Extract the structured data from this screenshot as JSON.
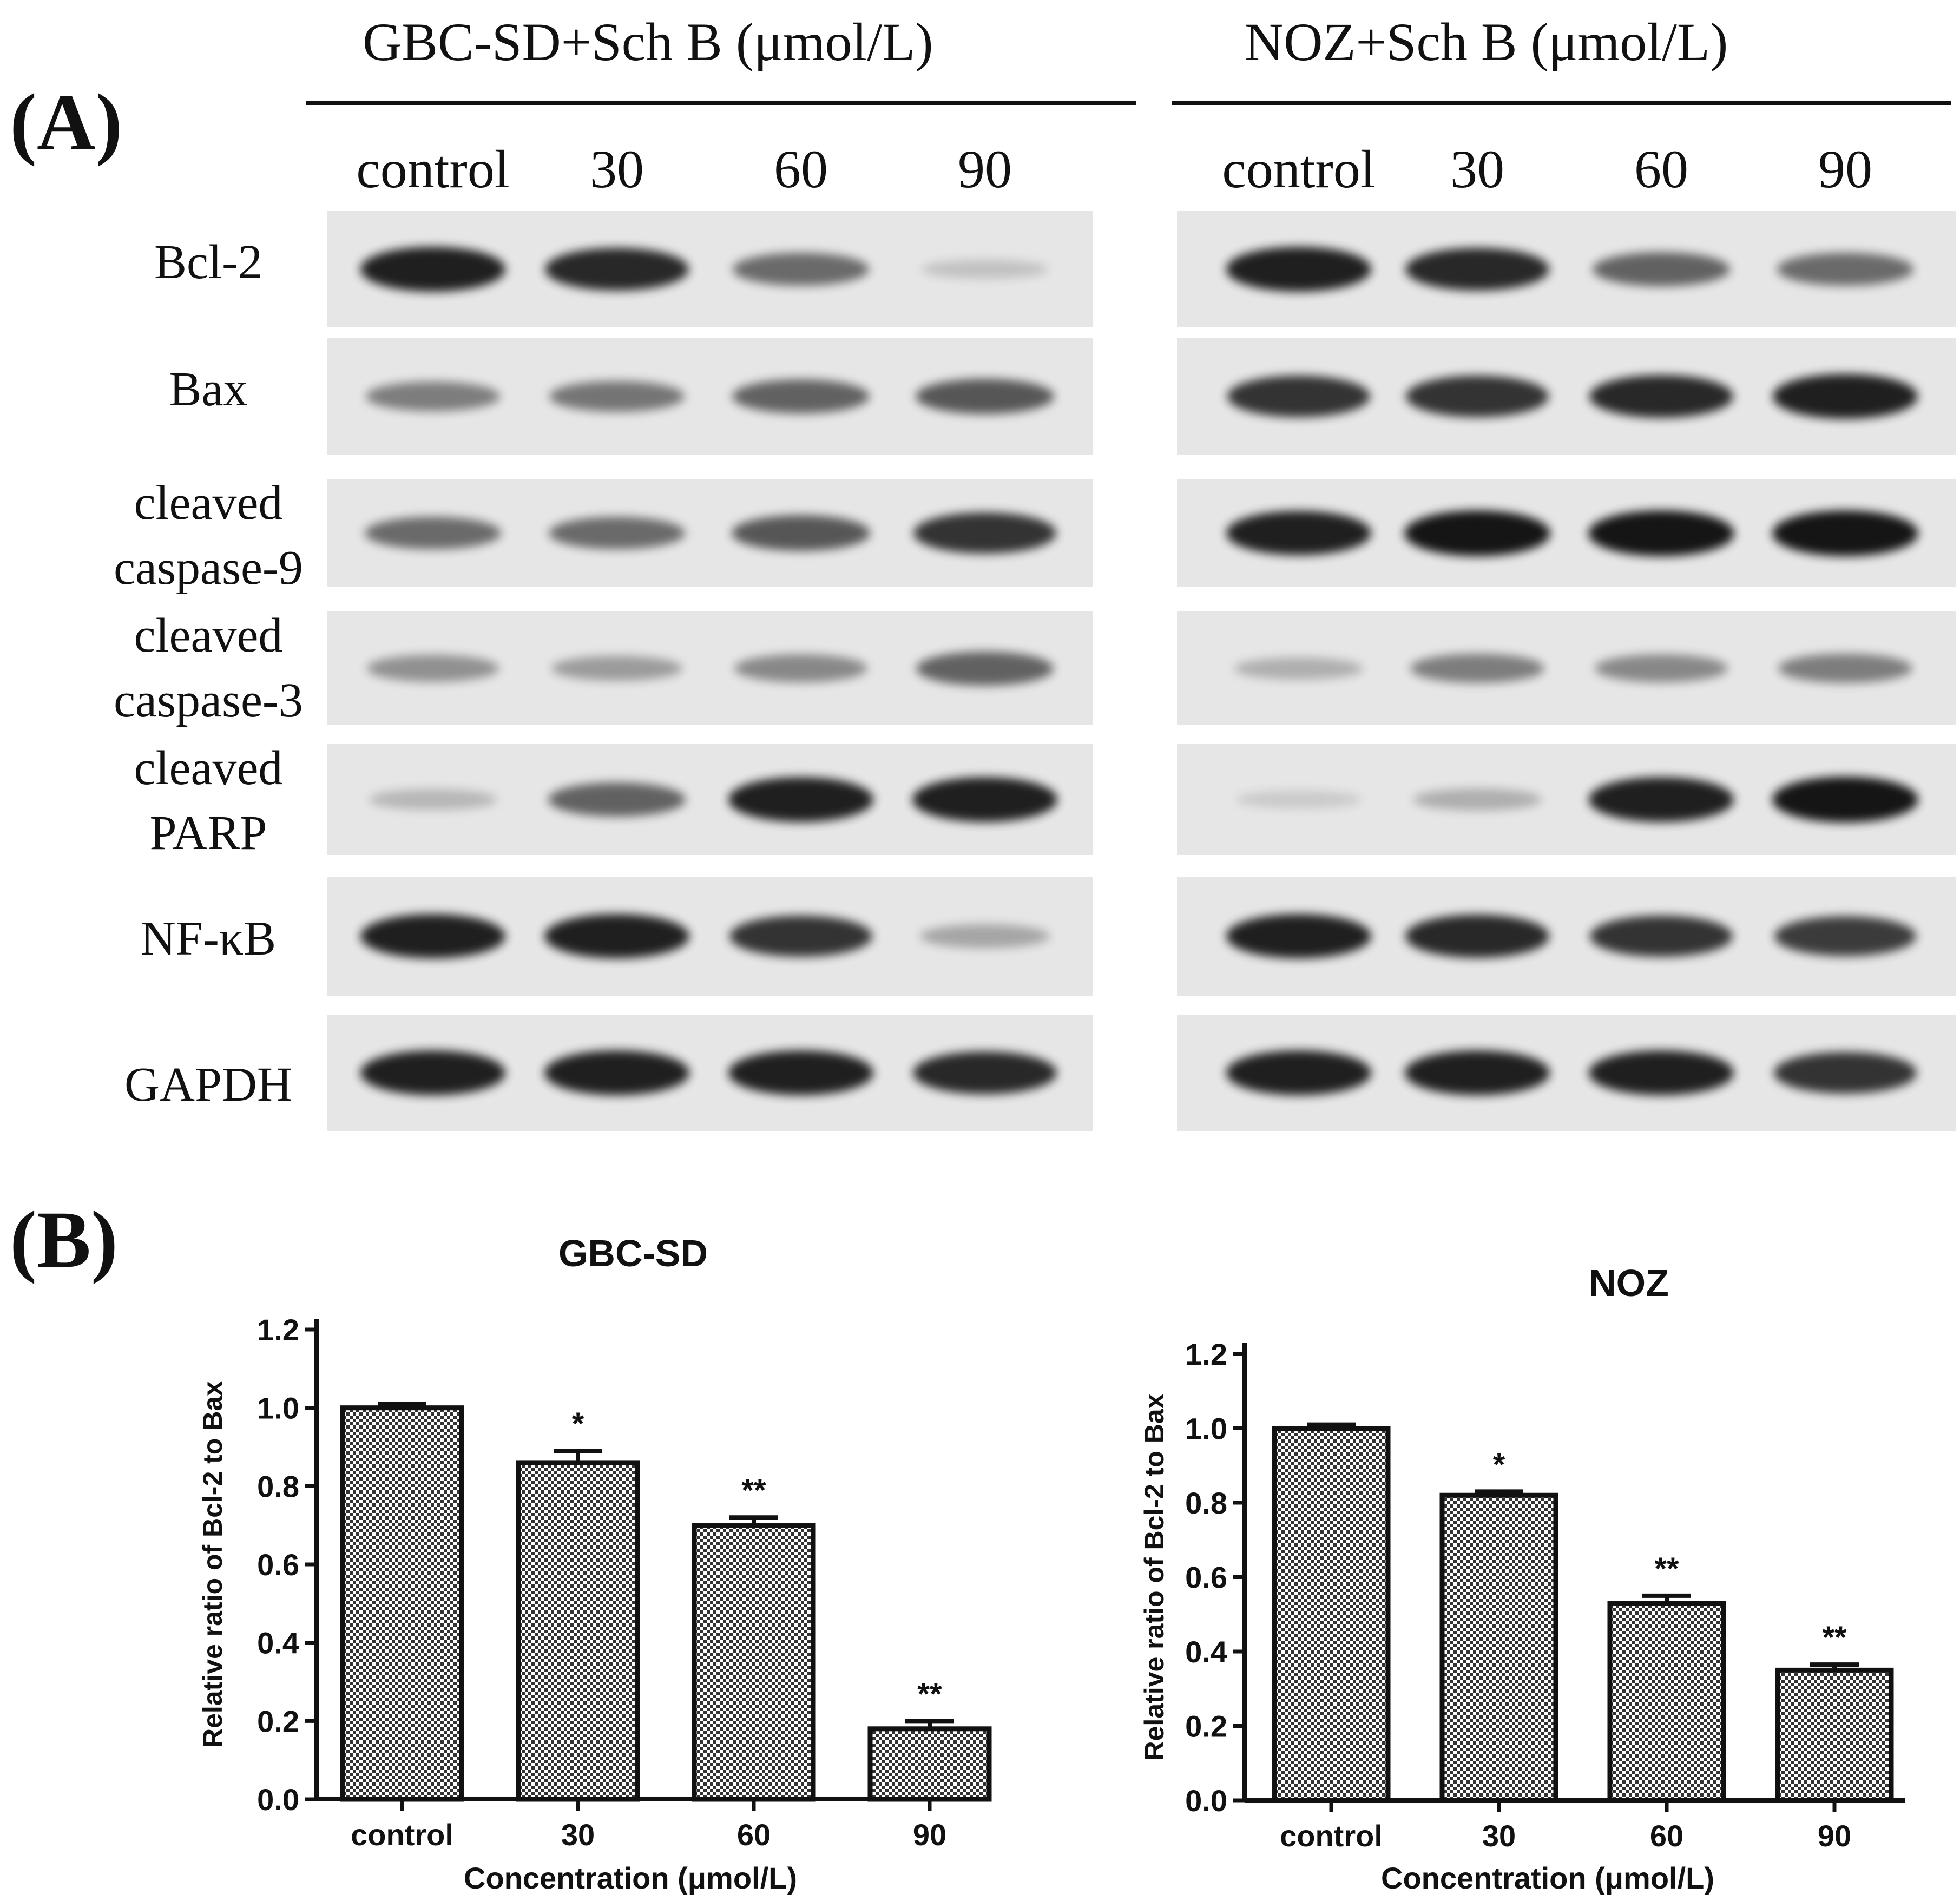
{
  "panel_a": {
    "label": "(A)",
    "groups": [
      {
        "title": "GBC-SD+Sch B (μmol/L)",
        "lanes": [
          "control",
          "30",
          "60",
          "90"
        ]
      },
      {
        "title": "NOZ+Sch B (μmol/L)",
        "lanes": [
          "control",
          "30",
          "60",
          "90"
        ]
      }
    ],
    "proteins": [
      {
        "name": "Bcl-2",
        "intensity": [
          [
            0.95,
            0.9,
            0.55,
            0.1
          ],
          [
            0.95,
            0.9,
            0.6,
            0.55
          ]
        ]
      },
      {
        "name": "Bax",
        "intensity": [
          [
            0.45,
            0.5,
            0.6,
            0.65
          ],
          [
            0.85,
            0.85,
            0.9,
            0.95
          ]
        ]
      },
      {
        "name": "cleaved\ncaspase-9",
        "intensity": [
          [
            0.55,
            0.55,
            0.65,
            0.85
          ],
          [
            0.95,
            1.0,
            1.0,
            1.0
          ]
        ]
      },
      {
        "name": "cleaved\ncaspase-3",
        "intensity": [
          [
            0.35,
            0.3,
            0.4,
            0.6
          ],
          [
            0.2,
            0.45,
            0.4,
            0.45
          ]
        ]
      },
      {
        "name": "cleaved\nPARP",
        "intensity": [
          [
            0.15,
            0.6,
            0.95,
            0.95
          ],
          [
            0.05,
            0.2,
            0.95,
            1.0
          ]
        ]
      },
      {
        "name": "NF-κB",
        "intensity": [
          [
            0.95,
            0.95,
            0.85,
            0.25
          ],
          [
            0.95,
            0.9,
            0.85,
            0.8
          ]
        ]
      },
      {
        "name": "GAPDH",
        "intensity": [
          [
            0.95,
            0.95,
            0.95,
            0.9
          ],
          [
            0.95,
            0.95,
            0.95,
            0.85
          ]
        ]
      }
    ]
  },
  "panel_b": {
    "label": "(B)"
  },
  "chart_data": [
    {
      "type": "bar",
      "title": "GBC-SD",
      "categories": [
        "control",
        "30",
        "60",
        "90"
      ],
      "values": [
        1.0,
        0.86,
        0.7,
        0.18
      ],
      "errors": [
        0.01,
        0.03,
        0.02,
        0.02
      ],
      "significance": [
        "",
        "*",
        "**",
        "**"
      ],
      "xlabel": "Concentration (μmol/L)",
      "ylabel": "Relative ratio of Bcl-2 to Bax",
      "ylim": [
        0,
        1.2
      ],
      "yticks": [
        "0.0",
        "0.2",
        "0.4",
        "0.6",
        "0.8",
        "1.0",
        "1.2"
      ]
    },
    {
      "type": "bar",
      "title": "NOZ",
      "categories": [
        "control",
        "30",
        "60",
        "90"
      ],
      "values": [
        1.0,
        0.82,
        0.53,
        0.35
      ],
      "errors": [
        0.01,
        0.01,
        0.02,
        0.015
      ],
      "significance": [
        "",
        "*",
        "**",
        "**"
      ],
      "xlabel": "Concentration (μmol/L)",
      "ylabel": "Relative ratio of Bcl-2 to Bax",
      "ylim": [
        0,
        1.2
      ],
      "yticks": [
        "0.0",
        "0.2",
        "0.4",
        "0.6",
        "0.8",
        "1.0",
        "1.2"
      ]
    }
  ]
}
